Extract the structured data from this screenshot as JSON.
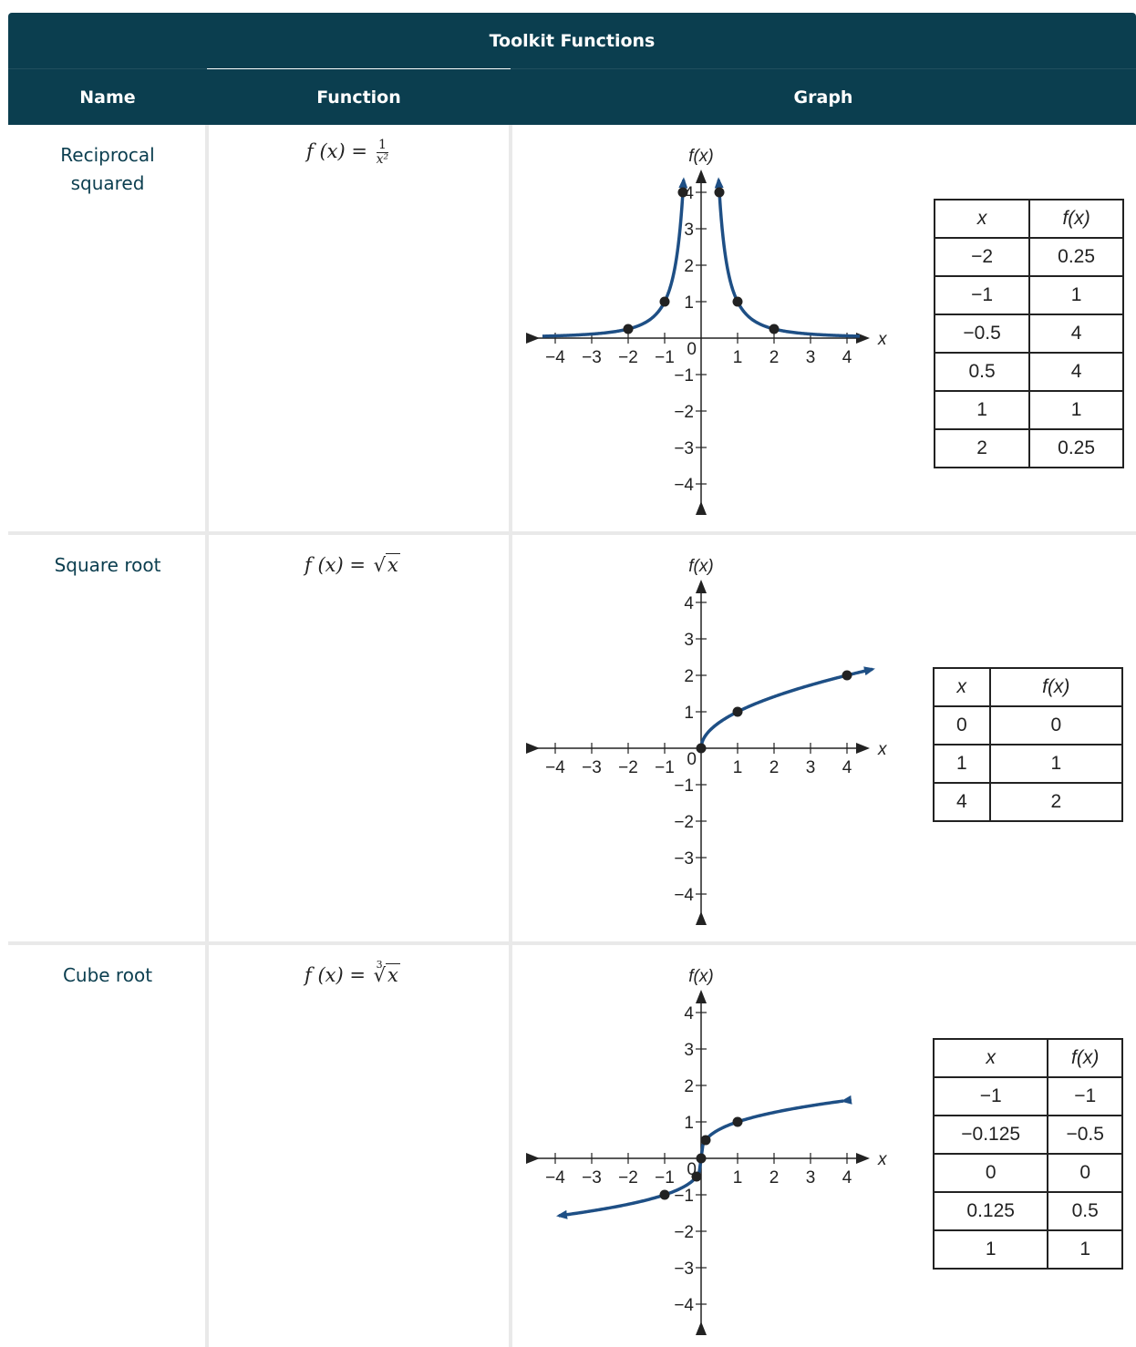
{
  "caption": "Toolkit Functions",
  "headers": {
    "name": "Name",
    "function": "Function",
    "graph": "Graph"
  },
  "rows": [
    {
      "name_line1": "Reciprocal",
      "name_line2": "squared",
      "formula_lhs": "f (x) =",
      "formula_num": "1",
      "formula_den": "x²",
      "table_headers": [
        "x",
        "f(x)"
      ],
      "table": [
        [
          "−2",
          "0.25"
        ],
        [
          "−1",
          "1"
        ],
        [
          "−0.5",
          "4"
        ],
        [
          "0.5",
          "4"
        ],
        [
          "1",
          "1"
        ],
        [
          "2",
          "0.25"
        ]
      ]
    },
    {
      "name_line1": "Square root",
      "formula_lhs": "f (x) =",
      "formula_rad": "x",
      "table_headers": [
        "x",
        "f(x)"
      ],
      "table": [
        [
          "0",
          "0"
        ],
        [
          "1",
          "1"
        ],
        [
          "4",
          "2"
        ]
      ]
    },
    {
      "name_line1": "Cube root",
      "formula_lhs": "f (x) =",
      "formula_rad": "x",
      "formula_idx": "3",
      "table_headers": [
        "x",
        "f(x)"
      ],
      "table": [
        [
          "−1",
          "−1"
        ],
        [
          "−0.125",
          "−0.5"
        ],
        [
          "0",
          "0"
        ],
        [
          "0.125",
          "0.5"
        ],
        [
          "1",
          "1"
        ]
      ]
    }
  ],
  "chart_data": [
    {
      "type": "line",
      "function": "1/x^2",
      "xlabel": "x",
      "ylabel": "f(x)",
      "xlim": [
        -4,
        4
      ],
      "ylim": [
        -4,
        4
      ],
      "xticks": [
        "−4",
        "−3",
        "−2",
        "−1",
        "1",
        "2",
        "3",
        "4"
      ],
      "yticks": [
        "4",
        "3",
        "2",
        "1",
        "−1",
        "−2",
        "−3",
        "−4"
      ],
      "origin_label": "0",
      "points": [
        [
          -2,
          0.25
        ],
        [
          -1,
          1
        ],
        [
          -0.5,
          4
        ],
        [
          0.5,
          4
        ],
        [
          1,
          1
        ],
        [
          2,
          0.25
        ]
      ],
      "color": "#1e4f85"
    },
    {
      "type": "line",
      "function": "sqrt(x)",
      "xlabel": "x",
      "ylabel": "f(x)",
      "xlim": [
        -4,
        4
      ],
      "ylim": [
        -4,
        4
      ],
      "xticks": [
        "−4",
        "−3",
        "−2",
        "−1",
        "1",
        "2",
        "3",
        "4"
      ],
      "yticks": [
        "4",
        "3",
        "2",
        "1",
        "−1",
        "−2",
        "−3",
        "−4"
      ],
      "origin_label": "0",
      "points": [
        [
          0,
          0
        ],
        [
          1,
          1
        ],
        [
          4,
          2
        ]
      ],
      "color": "#1e4f85"
    },
    {
      "type": "line",
      "function": "cbrt(x)",
      "xlabel": "x",
      "ylabel": "f(x)",
      "xlim": [
        -4,
        4
      ],
      "ylim": [
        -4,
        4
      ],
      "xticks": [
        "−4",
        "−3",
        "−2",
        "−1",
        "1",
        "2",
        "3",
        "4"
      ],
      "yticks": [
        "4",
        "3",
        "2",
        "1",
        "−1",
        "−2",
        "−3",
        "−4"
      ],
      "origin_label": "0",
      "points": [
        [
          -1,
          -1
        ],
        [
          -0.125,
          -0.5
        ],
        [
          0,
          0
        ],
        [
          0.125,
          0.5
        ],
        [
          1,
          1
        ]
      ],
      "color": "#1e4f85"
    }
  ]
}
